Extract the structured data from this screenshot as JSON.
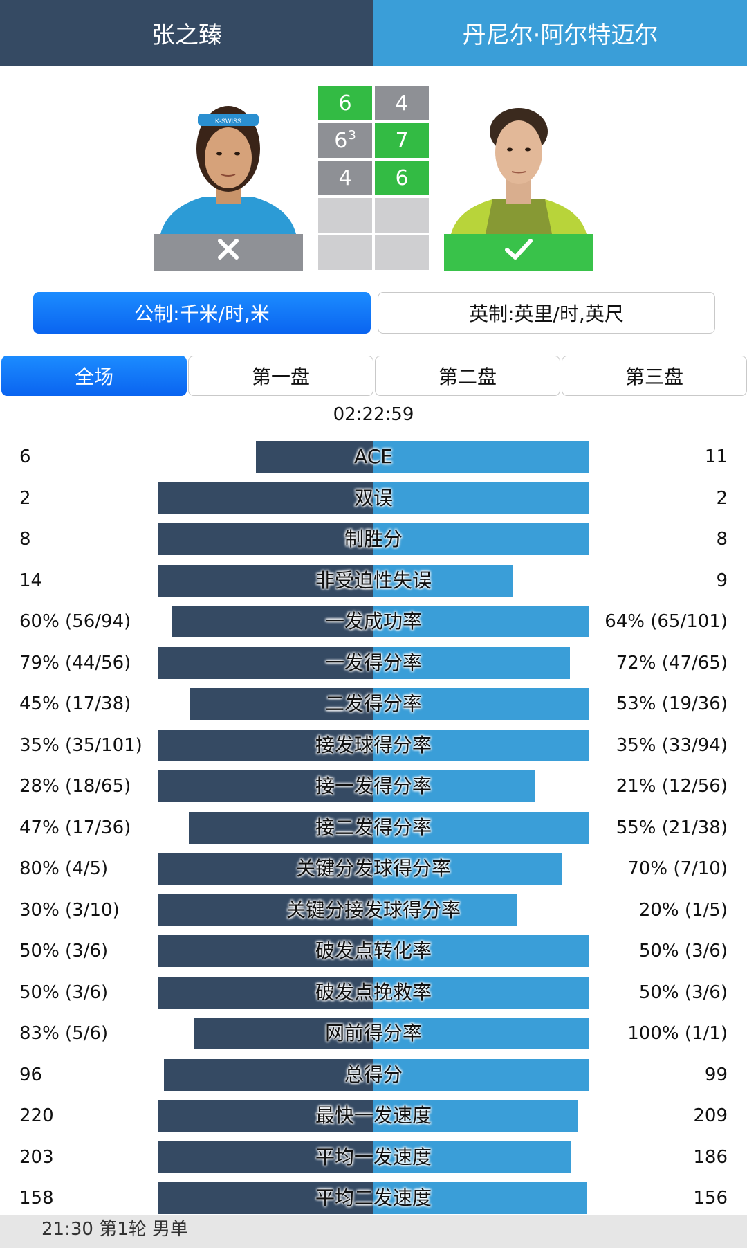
{
  "players": {
    "p1": {
      "name": "张之臻",
      "result": "loss"
    },
    "p2": {
      "name": "丹尼尔·阿尔特迈尔",
      "result": "win"
    }
  },
  "scores": [
    {
      "p1": "6",
      "p1_tiebreak": "",
      "p2": "4",
      "winner": "p1"
    },
    {
      "p1": "6",
      "p1_tiebreak": "3",
      "p2": "7",
      "winner": "p2"
    },
    {
      "p1": "4",
      "p1_tiebreak": "",
      "p2": "6",
      "winner": "p2"
    },
    {
      "p1": "",
      "p1_tiebreak": "",
      "p2": "",
      "winner": ""
    },
    {
      "p1": "",
      "p1_tiebreak": "",
      "p2": "",
      "winner": ""
    }
  ],
  "units": {
    "metric": "公制:千米/时,米",
    "imperial": "英制:英里/时,英尺",
    "selected": "metric"
  },
  "tabs": [
    "全场",
    "第一盘",
    "第二盘",
    "第三盘"
  ],
  "active_tab": 0,
  "duration": "02:22:59",
  "colors": {
    "p1": "#354a63",
    "p2": "#3a9ed8",
    "win": "#33bb44",
    "lose": "#8e9095",
    "accent": "#0a64f0"
  },
  "icons": {
    "loss": "x-icon",
    "win": "check-icon"
  },
  "stats": [
    {
      "label": "ACE",
      "left": "6",
      "right": "11",
      "l": 6,
      "r": 11
    },
    {
      "label": "双误",
      "left": "2",
      "right": "2",
      "l": 2,
      "r": 2
    },
    {
      "label": "制胜分",
      "left": "8",
      "right": "8",
      "l": 8,
      "r": 8
    },
    {
      "label": "非受迫性失误",
      "left": "14",
      "right": "9",
      "l": 14,
      "r": 9
    },
    {
      "label": "一发成功率",
      "left": "60% (56/94)",
      "right": "64% (65/101)",
      "l": 60,
      "r": 64
    },
    {
      "label": "一发得分率",
      "left": "79% (44/56)",
      "right": "72% (47/65)",
      "l": 79,
      "r": 72
    },
    {
      "label": "二发得分率",
      "left": "45% (17/38)",
      "right": "53% (19/36)",
      "l": 45,
      "r": 53
    },
    {
      "label": "接发球得分率",
      "left": "35% (35/101)",
      "right": "35% (33/94)",
      "l": 35,
      "r": 35
    },
    {
      "label": "接一发得分率",
      "left": "28% (18/65)",
      "right": "21% (12/56)",
      "l": 28,
      "r": 21
    },
    {
      "label": "接二发得分率",
      "left": "47% (17/36)",
      "right": "55% (21/38)",
      "l": 47,
      "r": 55
    },
    {
      "label": "关键分发球得分率",
      "left": "80% (4/5)",
      "right": "70% (7/10)",
      "l": 80,
      "r": 70
    },
    {
      "label": "关键分接发球得分率",
      "left": "30% (3/10)",
      "right": "20% (1/5)",
      "l": 30,
      "r": 20
    },
    {
      "label": "破发点转化率",
      "left": "50% (3/6)",
      "right": "50% (3/6)",
      "l": 50,
      "r": 50
    },
    {
      "label": "破发点挽救率",
      "left": "50% (3/6)",
      "right": "50% (3/6)",
      "l": 50,
      "r": 50
    },
    {
      "label": "网前得分率",
      "left": "83% (5/6)",
      "right": "100% (1/1)",
      "l": 83,
      "r": 100
    },
    {
      "label": "总得分",
      "left": "96",
      "right": "99",
      "l": 96,
      "r": 99
    },
    {
      "label": "最快一发速度",
      "left": "220",
      "right": "209",
      "l": 220,
      "r": 209
    },
    {
      "label": "平均一发速度",
      "left": "203",
      "right": "186",
      "l": 203,
      "r": 186
    },
    {
      "label": "平均二发速度",
      "left": "158",
      "right": "156",
      "l": 158,
      "r": 156
    }
  ],
  "footer": {
    "text": "21:30  第1轮 男单"
  }
}
